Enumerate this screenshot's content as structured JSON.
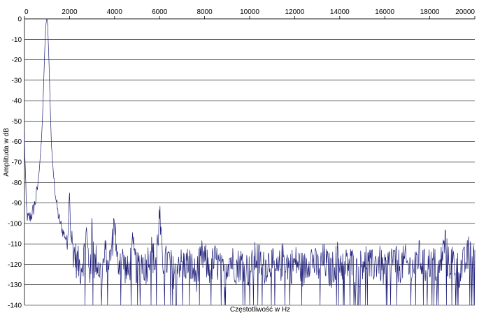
{
  "chart_data": {
    "type": "line",
    "title": "",
    "xlabel": "Częstotliwość w Hz",
    "ylabel": "Amplituda w dB",
    "xlim": [
      0,
      20000
    ],
    "ylim": [
      -140,
      0
    ],
    "x_ticks": [
      0,
      2000,
      4000,
      6000,
      8000,
      10000,
      12000,
      14000,
      16000,
      18000,
      20000
    ],
    "y_ticks": [
      0,
      -10,
      -20,
      -30,
      -40,
      -50,
      -60,
      -70,
      -80,
      -90,
      -100,
      -110,
      -120,
      -130,
      -140
    ],
    "x_tick_labels": [
      "0",
      "2000",
      "4000",
      "6000",
      "8000",
      "10000",
      "12000",
      "14000",
      "16000",
      "18000",
      "20000"
    ],
    "y_tick_labels": [
      "0",
      "-10",
      "-20",
      "-30",
      "-40",
      "-50",
      "-60",
      "-70",
      "-80",
      "-90",
      "-100",
      "-110",
      "-120",
      "-130",
      "-140"
    ],
    "grid": "horizontal",
    "line_color": "#1f1f7a",
    "series": [
      {
        "x": [
          0,
          40,
          80,
          150,
          250,
          350,
          450,
          550,
          650,
          750,
          800,
          850,
          900,
          940,
          970,
          1000,
          1030,
          1060,
          1100,
          1150,
          1200,
          1300,
          1400,
          1500,
          1600,
          1700,
          1800,
          1900,
          1950,
          2000,
          2050,
          2150,
          2300,
          2500,
          2650,
          2750,
          2850,
          2950,
          3000,
          3100,
          3200,
          3400,
          3600,
          3800,
          3900,
          4000,
          4100,
          4300,
          4600,
          4800,
          5000,
          5200,
          5400,
          5600,
          5800,
          5900,
          6000,
          6100,
          6200,
          6400,
          6600,
          6800,
          7000,
          7300,
          7600,
          7900,
          8200,
          8500,
          8800,
          9100,
          9400,
          9700,
          10000,
          10300,
          10600,
          10900,
          11200,
          11500,
          11800,
          12100,
          12400,
          12700,
          13000,
          13300,
          13600,
          13900,
          14200,
          14500,
          14800,
          15100,
          15400,
          15700,
          16000,
          16300,
          16600,
          16900,
          17200,
          17500,
          17800,
          18100,
          18400,
          18700,
          18800,
          19000,
          19300,
          19600,
          19800,
          19900,
          20000
        ],
        "y": [
          -57,
          -75,
          -92,
          -98,
          -97,
          -95,
          -91,
          -85,
          -75,
          -60,
          -48,
          -32,
          -15,
          -5,
          -1,
          0,
          -3,
          -12,
          -25,
          -45,
          -62,
          -78,
          -88,
          -96,
          -100,
          -104,
          -106,
          -110,
          -100,
          -82,
          -105,
          -112,
          -118,
          -122,
          -115,
          -105,
          -118,
          -125,
          -97,
          -120,
          -118,
          -125,
          -115,
          -118,
          -110,
          -96,
          -120,
          -116,
          -125,
          -113,
          -123,
          -118,
          -122,
          -112,
          -120,
          -110,
          -96,
          -115,
          -120,
          -118,
          -124,
          -117,
          -121,
          -119,
          -126,
          -116,
          -122,
          -118,
          -125,
          -117,
          -121,
          -119,
          -124,
          -116,
          -122,
          -118,
          -125,
          -117,
          -121,
          -119,
          -123,
          -116,
          -122,
          -118,
          -124,
          -117,
          -121,
          -119,
          -125,
          -116,
          -122,
          -118,
          -124,
          -117,
          -121,
          -119,
          -123,
          -116,
          -122,
          -118,
          -124,
          -108,
          -120,
          -118,
          -123,
          -119,
          -112,
          -116,
          -113
        ]
      }
    ]
  }
}
